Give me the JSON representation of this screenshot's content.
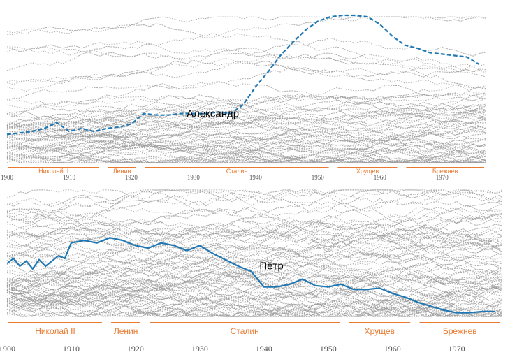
{
  "chart_data": [
    {
      "type": "line",
      "x_range": [
        1900,
        1977
      ],
      "y_range": [
        0,
        100
      ],
      "grid": false,
      "highlight": {
        "name": "Александр",
        "color": "#1f77b4",
        "points": [
          [
            1900,
            20
          ],
          [
            1902,
            21
          ],
          [
            1904,
            22
          ],
          [
            1906,
            24
          ],
          [
            1908,
            28
          ],
          [
            1910,
            22
          ],
          [
            1912,
            24
          ],
          [
            1914,
            22
          ],
          [
            1916,
            24
          ],
          [
            1918,
            25
          ],
          [
            1920,
            27
          ],
          [
            1922,
            34
          ],
          [
            1924,
            33
          ],
          [
            1926,
            33
          ],
          [
            1928,
            34
          ],
          [
            1930,
            34
          ],
          [
            1932,
            34
          ],
          [
            1934,
            35
          ],
          [
            1936,
            34
          ],
          [
            1938,
            40
          ],
          [
            1940,
            52
          ],
          [
            1942,
            62
          ],
          [
            1944,
            73
          ],
          [
            1946,
            82
          ],
          [
            1948,
            90
          ],
          [
            1950,
            96
          ],
          [
            1952,
            99
          ],
          [
            1954,
            100
          ],
          [
            1956,
            100
          ],
          [
            1958,
            99
          ],
          [
            1960,
            94
          ],
          [
            1962,
            86
          ],
          [
            1964,
            80
          ],
          [
            1966,
            78
          ],
          [
            1968,
            75
          ],
          [
            1970,
            74
          ],
          [
            1972,
            73
          ],
          [
            1974,
            72
          ],
          [
            1976,
            67
          ]
        ]
      },
      "era_labels": [
        "Николай II",
        "Ленин",
        "Сталин",
        "Хрущев",
        "Брежнев"
      ],
      "era_spans": [
        [
          1900,
          1915
        ],
        [
          1916,
          1921
        ],
        [
          1922,
          1952
        ],
        [
          1953,
          1963
        ],
        [
          1964,
          1977
        ]
      ],
      "ticks": [
        "1900",
        "1910",
        "1920",
        "1930",
        "1940",
        "1950",
        "1960",
        "1970"
      ],
      "tick_values": [
        1900,
        1910,
        1920,
        1930,
        1940,
        1950,
        1960,
        1970
      ]
    },
    {
      "type": "line",
      "x_range": [
        1900,
        1977
      ],
      "y_range": [
        0,
        100
      ],
      "grid": false,
      "highlight": {
        "name": "Пётр",
        "color": "#1f77b4",
        "points": [
          [
            1900,
            42
          ],
          [
            1901,
            46
          ],
          [
            1902,
            40
          ],
          [
            1903,
            44
          ],
          [
            1904,
            38
          ],
          [
            1905,
            45
          ],
          [
            1906,
            40
          ],
          [
            1907,
            44
          ],
          [
            1908,
            48
          ],
          [
            1909,
            46
          ],
          [
            1910,
            58
          ],
          [
            1912,
            60
          ],
          [
            1914,
            58
          ],
          [
            1916,
            62
          ],
          [
            1918,
            60
          ],
          [
            1920,
            56
          ],
          [
            1922,
            54
          ],
          [
            1924,
            58
          ],
          [
            1926,
            56
          ],
          [
            1928,
            52
          ],
          [
            1930,
            56
          ],
          [
            1932,
            50
          ],
          [
            1934,
            45
          ],
          [
            1936,
            40
          ],
          [
            1938,
            36
          ],
          [
            1939,
            30
          ],
          [
            1940,
            24
          ],
          [
            1942,
            24
          ],
          [
            1944,
            26
          ],
          [
            1946,
            30
          ],
          [
            1948,
            25
          ],
          [
            1950,
            24
          ],
          [
            1952,
            26
          ],
          [
            1954,
            22
          ],
          [
            1956,
            22
          ],
          [
            1958,
            23
          ],
          [
            1960,
            19
          ],
          [
            1962,
            16
          ],
          [
            1964,
            12
          ],
          [
            1966,
            9
          ],
          [
            1968,
            6
          ],
          [
            1970,
            4
          ],
          [
            1972,
            4
          ],
          [
            1974,
            5
          ],
          [
            1976,
            5
          ]
        ]
      },
      "era_labels": [
        "Николай II",
        "Ленин",
        "Сталин",
        "Хрущев",
        "Брежнев"
      ],
      "era_spans": [
        [
          1900,
          1915
        ],
        [
          1916,
          1921
        ],
        [
          1922,
          1952
        ],
        [
          1953,
          1963
        ],
        [
          1964,
          1977
        ]
      ],
      "ticks": [
        "1900",
        "1910",
        "1920",
        "1930",
        "1940",
        "1950",
        "1960",
        "1970"
      ],
      "tick_values": [
        1900,
        1910,
        1920,
        1930,
        1940,
        1950,
        1960,
        1970
      ]
    }
  ],
  "colors": {
    "highlight": "#1f77b4",
    "background_lines": "#9a9a9a",
    "era": "#e8792f"
  }
}
